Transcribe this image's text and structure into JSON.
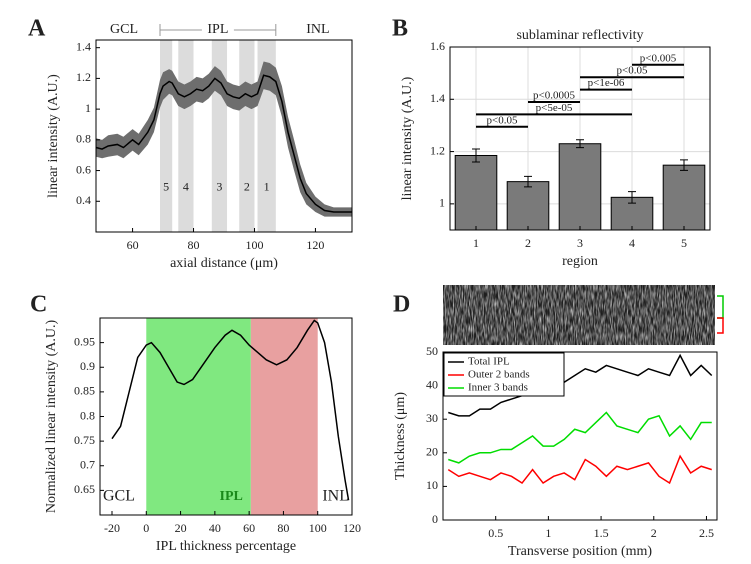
{
  "chart_data": [
    {
      "type": "line",
      "panel": "A",
      "layers": [
        "GCL",
        "IPL",
        "INL"
      ],
      "xlabel": "axial distance (μm)",
      "ylabel": "linear intensity (A.U.)",
      "x": [
        48,
        50,
        52,
        55,
        57,
        60,
        62,
        65,
        67,
        69,
        70,
        72,
        73,
        75,
        77,
        79,
        81,
        83,
        85,
        87,
        89,
        91,
        93,
        95,
        97,
        99,
        101,
        103,
        105,
        107,
        109,
        111,
        113,
        115,
        117,
        120,
        123,
        126,
        129,
        132
      ],
      "series": [
        {
          "color": "#000000",
          "band_color": "#6e6e6e",
          "values": [
            0.75,
            0.74,
            0.76,
            0.77,
            0.75,
            0.8,
            0.77,
            0.85,
            0.93,
            1.1,
            1.15,
            1.18,
            1.17,
            1.1,
            1.08,
            1.1,
            1.13,
            1.12,
            1.15,
            1.2,
            1.17,
            1.1,
            1.08,
            1.07,
            1.1,
            1.08,
            1.1,
            1.22,
            1.21,
            1.18,
            1.05,
            0.85,
            0.7,
            0.55,
            0.45,
            0.38,
            0.34,
            0.33,
            0.33,
            0.33
          ],
          "errors": [
            0.06,
            0.06,
            0.07,
            0.07,
            0.07,
            0.07,
            0.07,
            0.08,
            0.08,
            0.09,
            0.09,
            0.08,
            0.08,
            0.08,
            0.08,
            0.08,
            0.08,
            0.08,
            0.08,
            0.08,
            0.08,
            0.08,
            0.08,
            0.08,
            0.08,
            0.08,
            0.08,
            0.09,
            0.09,
            0.09,
            0.1,
            0.1,
            0.1,
            0.09,
            0.07,
            0.05,
            0.04,
            0.03,
            0.03,
            0.03
          ]
        }
      ],
      "span_color": "#dcdcdc",
      "spans": [
        {
          "label": "5",
          "from": 69,
          "to": 73
        },
        {
          "label": "4",
          "from": 75,
          "to": 80
        },
        {
          "label": "3",
          "from": 86,
          "to": 91
        },
        {
          "label": "2",
          "from": 95,
          "to": 100
        },
        {
          "label": "1",
          "from": 101,
          "to": 107
        }
      ],
      "xlim": [
        48,
        132
      ],
      "ylim": [
        0.2,
        1.45
      ],
      "xticks": [
        60,
        80,
        100,
        120
      ],
      "yticks": [
        0.4,
        0.6,
        0.8,
        1,
        1.2,
        1.4
      ]
    },
    {
      "type": "bar",
      "panel": "B",
      "title": "sublaminar reflectivity",
      "xlabel": "region",
      "ylabel": "linear intensity (A.U.)",
      "categories": [
        "1",
        "2",
        "3",
        "4",
        "5"
      ],
      "values": [
        1.185,
        1.085,
        1.23,
        1.025,
        1.148
      ],
      "errors": [
        0.025,
        0.02,
        0.015,
        0.022,
        0.02
      ],
      "color": "#7a7a7a",
      "grid": true,
      "brackets": [
        {
          "label": "p<0.05",
          "from": "1",
          "to": "2"
        },
        {
          "label": "p<5e-05",
          "from": "1",
          "to": "4"
        },
        {
          "label": "p<0.0005",
          "from": "2",
          "to": "3"
        },
        {
          "label": "p<1e-06",
          "from": "3",
          "to": "4"
        },
        {
          "label": "p<0.05",
          "from": "3",
          "to": "5"
        },
        {
          "label": "p<0.005",
          "from": "4",
          "to": "5"
        }
      ],
      "ylim": [
        0.9,
        1.6
      ],
      "yticks": [
        1,
        1.2,
        1.4,
        1.6
      ]
    },
    {
      "type": "line",
      "panel": "C",
      "xlabel": "IPL thickness percentage",
      "ylabel": "Normalized linear intensity (A.U.)",
      "edge_labels": [
        "GCL",
        "INL"
      ],
      "spans": [
        {
          "label": "IPL",
          "from": 0,
          "to": 61,
          "color": "#80e880",
          "label_color": "#1a8a1a"
        },
        {
          "from": 61,
          "to": 100,
          "color": "#e8a0a0"
        }
      ],
      "x": [
        -20,
        -15,
        -10,
        -5,
        0,
        3,
        8,
        13,
        18,
        22,
        27,
        33,
        40,
        46,
        50,
        55,
        60,
        65,
        70,
        76,
        82,
        88,
        94,
        98,
        100,
        104,
        108,
        112,
        116,
        118
      ],
      "series": [
        {
          "color": "#000000",
          "values": [
            0.755,
            0.78,
            0.85,
            0.92,
            0.945,
            0.95,
            0.93,
            0.9,
            0.87,
            0.865,
            0.875,
            0.905,
            0.94,
            0.965,
            0.975,
            0.965,
            0.945,
            0.93,
            0.915,
            0.905,
            0.915,
            0.94,
            0.975,
            0.995,
            0.99,
            0.95,
            0.87,
            0.76,
            0.67,
            0.63
          ]
        }
      ],
      "xlim": [
        -27,
        120
      ],
      "ylim": [
        0.6,
        1.0
      ],
      "xticks": [
        -20,
        0,
        20,
        40,
        60,
        80,
        100,
        120
      ],
      "yticks": [
        0.65,
        0.7,
        0.75,
        0.8,
        0.85,
        0.9,
        0.95
      ]
    },
    {
      "type": "line",
      "panel": "D",
      "xlabel": "Transverse position (mm)",
      "ylabel": "Thickness (μm)",
      "x": [
        0.05,
        0.15,
        0.25,
        0.35,
        0.45,
        0.55,
        0.65,
        0.75,
        0.85,
        0.95,
        1.05,
        1.15,
        1.25,
        1.35,
        1.45,
        1.55,
        1.65,
        1.75,
        1.85,
        1.95,
        2.05,
        2.15,
        2.25,
        2.35,
        2.45,
        2.55
      ],
      "series": [
        {
          "name": "Total IPL",
          "color": "#000000",
          "values": [
            32,
            31,
            31,
            33,
            33,
            35,
            36,
            37,
            39,
            37,
            38,
            41,
            43,
            45,
            44,
            46,
            45,
            44,
            43,
            45,
            44,
            43,
            49,
            43,
            46,
            43
          ]
        },
        {
          "name": "Outer 2 bands",
          "color": "#ff0000",
          "values": [
            15,
            13,
            14,
            13,
            12,
            14,
            13,
            11,
            15,
            11,
            13,
            14,
            12,
            18,
            16,
            13,
            16,
            15,
            16,
            17,
            13,
            11,
            19,
            14,
            16,
            15
          ]
        },
        {
          "name": "Inner 3 bands",
          "color": "#00dd00",
          "values": [
            18,
            17,
            19,
            20,
            20,
            21,
            21,
            23,
            25,
            22,
            22,
            24,
            27,
            26,
            29,
            32,
            28,
            27,
            26,
            30,
            31,
            25,
            28,
            24,
            29,
            29
          ]
        }
      ],
      "legend": "upper left",
      "xlim": [
        0,
        2.6
      ],
      "ylim": [
        0,
        50
      ],
      "xticks": [
        0.5,
        1,
        1.5,
        2,
        2.5
      ],
      "yticks": [
        0,
        10,
        20,
        30,
        40,
        50
      ]
    }
  ]
}
